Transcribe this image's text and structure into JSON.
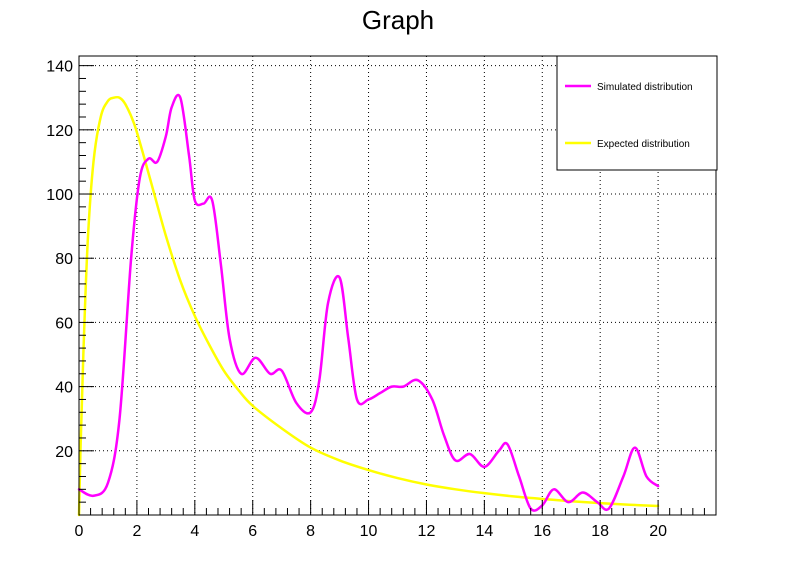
{
  "chart_data": {
    "type": "line",
    "title": "Graph",
    "xlabel": "",
    "ylabel": "",
    "xlim": [
      0,
      22
    ],
    "ylim": [
      0,
      143
    ],
    "x_ticks": [
      0,
      2,
      4,
      6,
      8,
      10,
      12,
      14,
      16,
      18,
      20
    ],
    "y_ticks": [
      20,
      40,
      60,
      80,
      100,
      120,
      140
    ],
    "grid": true,
    "legend_position": "top-right",
    "series": [
      {
        "name": "Simulated distribution",
        "color": "#ff00ff",
        "x": [
          0,
          0.5,
          1,
          1.4,
          1.8,
          2.1,
          2.4,
          2.7,
          3.0,
          3.2,
          3.5,
          3.8,
          4.0,
          4.3,
          4.6,
          4.9,
          5.2,
          5.6,
          6.1,
          6.6,
          7.0,
          7.5,
          8.0,
          8.3,
          8.6,
          9.0,
          9.3,
          9.6,
          10.0,
          10.4,
          10.8,
          11.2,
          11.7,
          12.2,
          12.6,
          13.0,
          13.5,
          14.0,
          14.5,
          14.8,
          15.2,
          15.6,
          16.0,
          16.4,
          16.9,
          17.4,
          17.9,
          18.3,
          18.8,
          19.2,
          19.6,
          20.0
        ],
        "y": [
          8,
          6,
          10,
          30,
          80,
          105,
          111,
          110,
          118,
          127,
          130,
          112,
          98,
          97,
          98,
          78,
          55,
          44,
          49,
          44,
          45,
          35,
          32,
          42,
          66,
          74,
          55,
          36,
          36,
          38,
          40,
          40,
          42,
          36,
          25,
          17,
          19,
          15,
          20,
          22,
          12,
          2,
          3,
          8,
          4,
          7,
          4,
          2,
          12,
          21,
          12,
          9
        ]
      },
      {
        "name": "Expected distribution",
        "color": "#ffff00",
        "x": [
          0,
          0.05,
          0.15,
          0.3,
          0.5,
          0.75,
          1.0,
          1.2,
          1.4,
          1.6,
          1.9,
          2.2,
          2.6,
          3.0,
          3.5,
          4.0,
          4.5,
          5.0,
          5.5,
          6.0,
          7.0,
          8.0,
          9.0,
          10.0,
          11.0,
          12.0,
          13.0,
          14.0,
          15.0,
          16.0,
          17.0,
          18.0,
          19.0,
          20.0
        ],
        "y": [
          0,
          20,
          50,
          85,
          110,
          124,
          129,
          130,
          130,
          128,
          122,
          113,
          100,
          87,
          73,
          62,
          53,
          45,
          39,
          34,
          27,
          21,
          17,
          14,
          11.5,
          9.5,
          8,
          6.8,
          5.8,
          5,
          4.3,
          3.7,
          3.2,
          2.8
        ]
      }
    ]
  }
}
